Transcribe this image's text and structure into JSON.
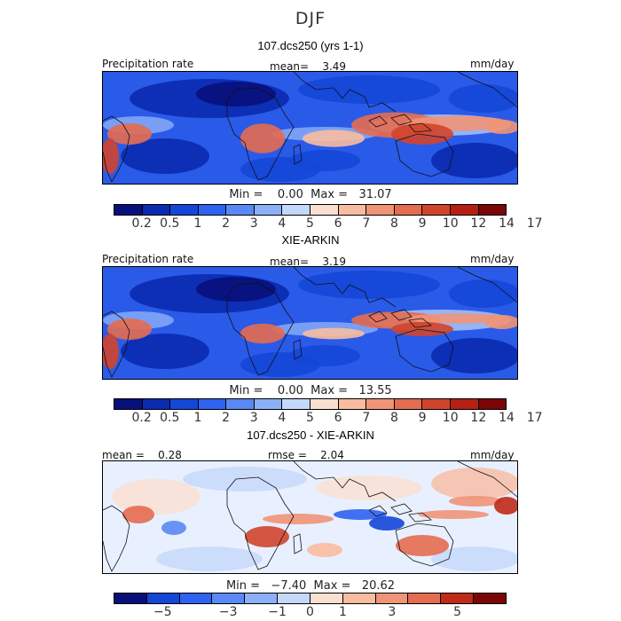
{
  "season": "DJF",
  "palette_abs": [
    "#08107a",
    "#0a2ab0",
    "#1446d8",
    "#2e62f0",
    "#5a88f4",
    "#8cb0f8",
    "#c4d8fa",
    "#fae0d0",
    "#f8bca0",
    "#f09478",
    "#e46c50",
    "#d0442c",
    "#b42014",
    "#7a0606"
  ],
  "palette_diff": [
    "#08107a",
    "#1446d8",
    "#2e62f0",
    "#5a88f4",
    "#8cb0f8",
    "#c4d8fa",
    "#fae0d0",
    "#f8bca0",
    "#f09478",
    "#e46c50",
    "#c02a18",
    "#7a0606"
  ],
  "panels": [
    {
      "title": "107.dcs250 (yrs 1-1)",
      "left_label": "Precipitation rate",
      "center_label": "mean=    3.49",
      "units": "mm/day",
      "minmax": "Min =    0.00  Max =   31.07",
      "colorbar_labels": [
        "0.2",
        "0.5",
        "1",
        "2",
        "3",
        "4",
        "5",
        "6",
        "7",
        "8",
        "9",
        "10",
        "12",
        "14",
        "17"
      ],
      "map_icon": "global-precipitation-map"
    },
    {
      "title": "XIE-ARKIN",
      "left_label": "Precipitation rate",
      "center_label": "mean=    3.19",
      "units": "mm/day",
      "minmax": "Min =    0.00  Max =   13.55",
      "colorbar_labels": [
        "0.2",
        "0.5",
        "1",
        "2",
        "3",
        "4",
        "5",
        "6",
        "7",
        "8",
        "9",
        "10",
        "12",
        "14",
        "17"
      ],
      "map_icon": "global-precipitation-map"
    },
    {
      "title": "107.dcs250 - XIE-ARKIN",
      "left_label": "mean =    0.28",
      "center_label": "rmse =    2.04",
      "units": "mm/day",
      "minmax": "Min =   −7.40  Max =   20.62",
      "colorbar_labels": [
        "−5",
        "−3",
        "−1",
        "0",
        "1",
        "3",
        "5"
      ],
      "map_icon": "precipitation-difference-map"
    }
  ]
}
